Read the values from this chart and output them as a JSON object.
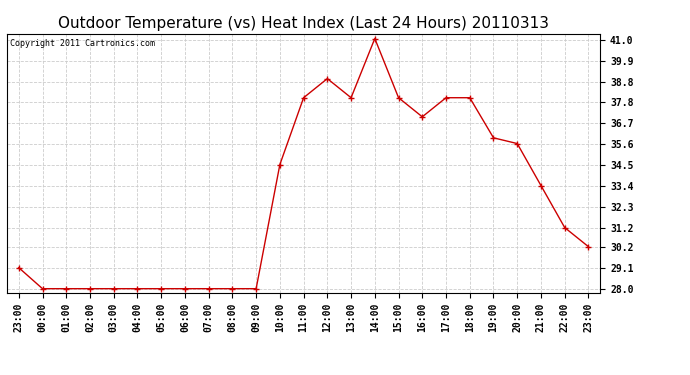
{
  "title": "Outdoor Temperature (vs) Heat Index (Last 24 Hours) 20110313",
  "copyright_text": "Copyright 2011 Cartronics.com",
  "x_labels": [
    "23:00",
    "00:00",
    "01:00",
    "02:00",
    "03:00",
    "04:00",
    "05:00",
    "06:00",
    "07:00",
    "08:00",
    "09:00",
    "10:00",
    "11:00",
    "12:00",
    "13:00",
    "14:00",
    "15:00",
    "16:00",
    "17:00",
    "18:00",
    "19:00",
    "20:00",
    "21:00",
    "22:00",
    "23:00"
  ],
  "y_values": [
    29.1,
    28.0,
    28.0,
    28.0,
    28.0,
    28.0,
    28.0,
    28.0,
    28.0,
    28.0,
    28.0,
    34.5,
    38.0,
    39.0,
    38.0,
    41.1,
    38.0,
    37.0,
    38.0,
    38.0,
    35.9,
    35.6,
    33.4,
    31.2,
    30.2
  ],
  "line_color": "#cc0000",
  "marker": "+",
  "marker_size": 4,
  "marker_color": "#cc0000",
  "ylim_min": 27.8,
  "ylim_max": 41.35,
  "y_ticks": [
    28.0,
    29.1,
    30.2,
    31.2,
    32.3,
    33.4,
    34.5,
    35.6,
    36.7,
    37.8,
    38.8,
    39.9,
    41.0
  ],
  "y_tick_labels": [
    "28.0",
    "29.1",
    "30.2",
    "31.2",
    "32.3",
    "33.4",
    "34.5",
    "35.6",
    "36.7",
    "37.8",
    "38.8",
    "39.9",
    "41.0"
  ],
  "grid_color": "#cccccc",
  "grid_style": "--",
  "background_color": "#ffffff",
  "title_fontsize": 11,
  "tick_fontsize": 7,
  "copyright_fontsize": 6,
  "linewidth": 1.0
}
